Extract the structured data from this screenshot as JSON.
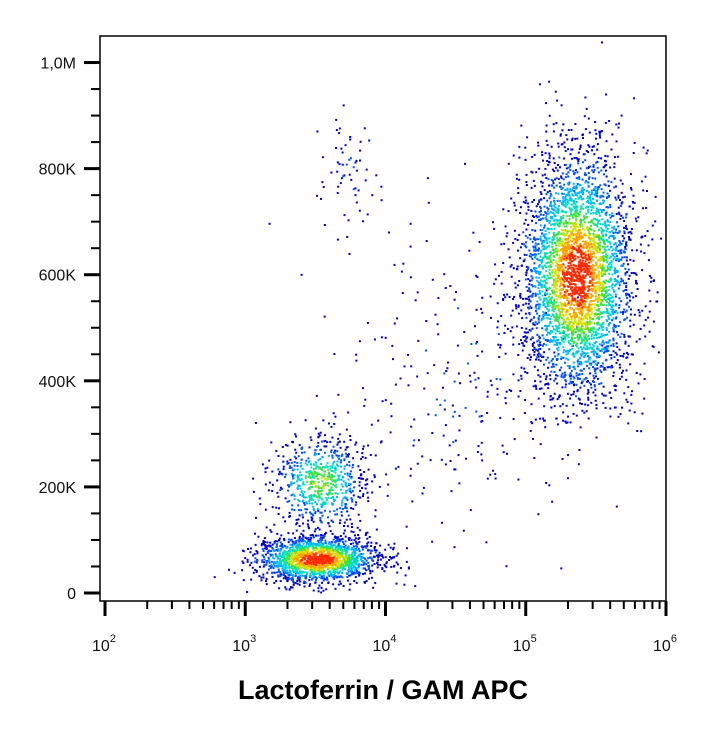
{
  "chart_data": {
    "type": "scatter",
    "subtype": "flow-cytometry-density-dot-plot",
    "title": "",
    "xlabel": "Lactoferrin / GAM APC",
    "ylabel": "",
    "x_scale": "log",
    "xlim": [
      100,
      1000000
    ],
    "ylim": [
      0,
      1050000
    ],
    "x_ticks": [
      {
        "value": 100,
        "base": "10",
        "exp": "2"
      },
      {
        "value": 1000,
        "base": "10",
        "exp": "3"
      },
      {
        "value": 10000,
        "base": "10",
        "exp": "4"
      },
      {
        "value": 100000,
        "base": "10",
        "exp": "5"
      },
      {
        "value": 1000000,
        "base": "10",
        "exp": "6"
      }
    ],
    "y_ticks": [
      {
        "value": 0,
        "label": "0"
      },
      {
        "value": 200000,
        "label": "200K"
      },
      {
        "value": 400000,
        "label": "400K"
      },
      {
        "value": 600000,
        "label": "600K"
      },
      {
        "value": 800000,
        "label": "800K"
      },
      {
        "value": 1000000,
        "label": "1,0M"
      }
    ],
    "populations": [
      {
        "x_center": 3200,
        "y_center": 65000,
        "x_spread_decades": 0.22,
        "y_spread": 22000,
        "points": 1700,
        "peak_density": "high"
      },
      {
        "x_center": 3400,
        "y_center": 210000,
        "x_spread_decades": 0.17,
        "y_spread": 45000,
        "points": 650,
        "peak_density": "medium"
      },
      {
        "x_center": 230000,
        "y_center": 600000,
        "x_spread_decades": 0.2,
        "y_spread": 115000,
        "points": 3600,
        "peak_density": "high"
      },
      {
        "x_center": 5500,
        "y_center": 780000,
        "x_spread_decades": 0.1,
        "y_spread": 60000,
        "points": 60,
        "peak_density": "low"
      },
      {
        "x_center": 30000,
        "y_center": 400000,
        "x_spread_decades": 0.45,
        "y_spread": 150000,
        "points": 260,
        "peak_density": "low"
      }
    ],
    "colormap": [
      "#0000c8",
      "#0050ff",
      "#00b4ff",
      "#00e0c0",
      "#40e040",
      "#d8e000",
      "#ffa000",
      "#ff2a00"
    ],
    "grid": false,
    "legend": "none"
  }
}
